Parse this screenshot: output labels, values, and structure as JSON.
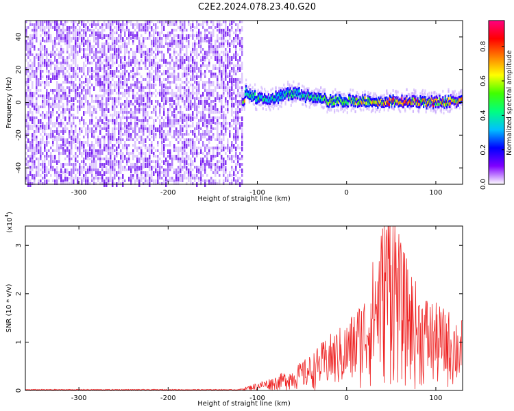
{
  "title": "C2E2.2024.078.23.40.G20",
  "charts": {
    "spectrogram": {
      "xlabel": "Height of straight line (km)",
      "ylabel": "Frequency (Hz)",
      "xlim": [
        -360,
        130
      ],
      "ylim": [
        -50,
        50
      ],
      "xticks": [
        -300,
        -200,
        -100,
        0,
        100
      ],
      "xtick_labels": [
        "-300",
        "-200",
        "-100",
        "0",
        "100"
      ],
      "yticks": [
        -40,
        -20,
        0,
        20,
        40
      ],
      "ytick_labels": [
        "-40",
        "-20",
        "0",
        "20",
        "40"
      ],
      "data_cutoff_x": -118,
      "colorbar_label": "Normalized spectral amplitude",
      "colorbar_ticks": [
        0.0,
        0.2,
        0.4,
        0.6,
        0.8
      ],
      "colorbar_tick_labels": [
        "0.0",
        "0.2",
        "0.4",
        "0.6",
        "0.8"
      ],
      "colormap": [
        "#ffffff",
        "#8000ff",
        "#0000ff",
        "#00c0ff",
        "#00ff80",
        "#40ff00",
        "#ffff00",
        "#ff8000",
        "#ff0000",
        "#ff0080"
      ]
    },
    "snr": {
      "xlabel": "Height of straight line (km)",
      "ylabel": "SNR (10 * v/v)",
      "scale_label": "(x10",
      "scale_exponent": "4",
      "scale_close": ")",
      "xlim": [
        -360,
        130
      ],
      "ylim": [
        0,
        3.4
      ],
      "xticks": [
        -300,
        -200,
        -100,
        0,
        100
      ],
      "xtick_labels": [
        "-300",
        "-200",
        "-100",
        "0",
        "100"
      ],
      "yticks": [
        0,
        1,
        2,
        3
      ],
      "ytick_labels": [
        "0",
        "1",
        "2",
        "3"
      ],
      "line_color": "#ee2222"
    }
  },
  "chart_data": [
    {
      "type": "heatmap",
      "title": "C2E2.2024.078.23.40.G20",
      "xlabel": "Height of straight line (km)",
      "ylabel": "Frequency (Hz)",
      "xlim": [
        -360,
        130
      ],
      "ylim": [
        -50,
        50
      ],
      "colorbar": "Normalized spectral amplitude",
      "ridge": {
        "x": [
          -115,
          -100,
          -80,
          -60,
          -40,
          -20,
          0,
          20,
          40,
          60,
          80,
          100,
          125
        ],
        "y": [
          7,
          2,
          3,
          6,
          3,
          1,
          1,
          1,
          0,
          1,
          0,
          0,
          1
        ],
        "amplitude": [
          0.45,
          0.5,
          0.45,
          0.5,
          0.55,
          0.6,
          0.65,
          0.7,
          0.8,
          0.85,
          0.85,
          0.8,
          0.75
        ]
      },
      "noise_region_x": [
        -360,
        -118
      ],
      "noise_amplitude": 0.1
    },
    {
      "type": "line",
      "xlabel": "Height of straight line (km)",
      "ylabel": "SNR (10 * v/v)",
      "y_scale": "x10^4",
      "xlim": [
        -360,
        130
      ],
      "ylim": [
        0,
        3.4
      ],
      "series": [
        {
          "x": [
            -360,
            -300,
            -200,
            -120,
            -100,
            -80,
            -60,
            -40,
            -20,
            0,
            20,
            40,
            50,
            60,
            80,
            100,
            120,
            130
          ],
          "y": [
            0.02,
            0.02,
            0.02,
            0.02,
            0.12,
            0.22,
            0.35,
            0.55,
            0.85,
            1.05,
            1.5,
            2.6,
            3.35,
            2.3,
            1.6,
            1.35,
            1.2,
            1.1
          ],
          "color": "#ee2222"
        }
      ]
    }
  ]
}
